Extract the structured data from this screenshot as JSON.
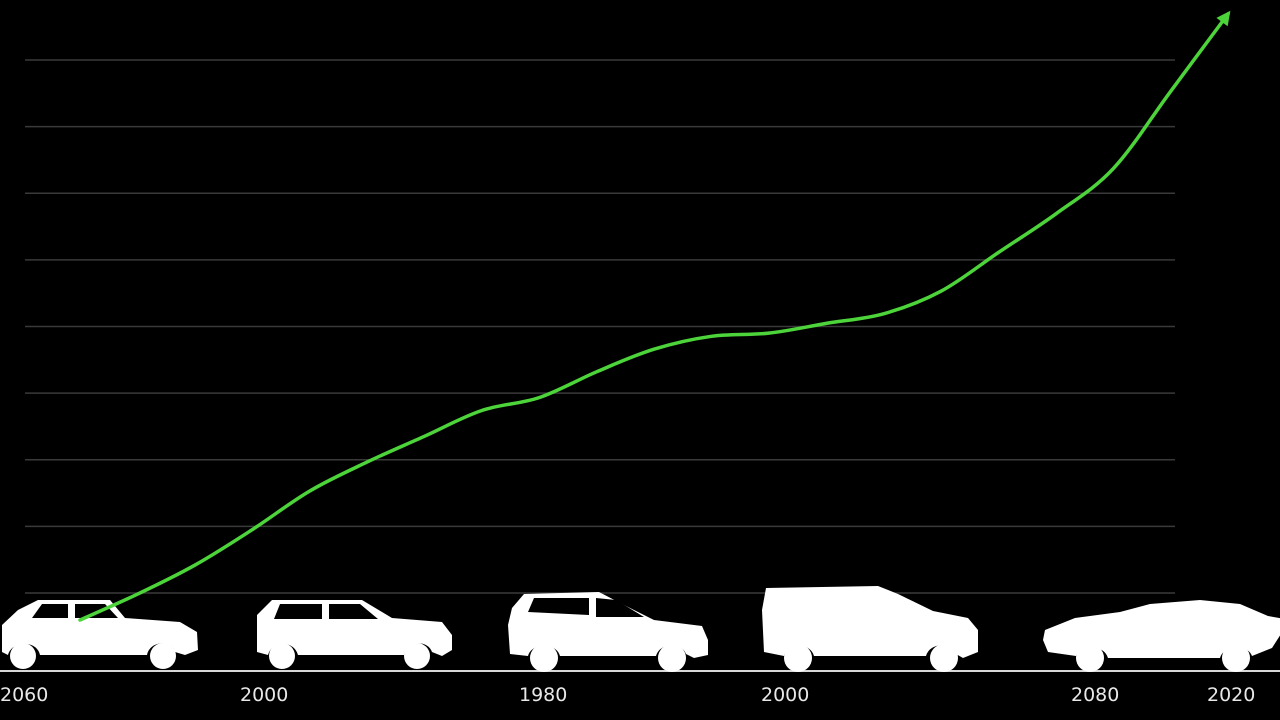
{
  "chart_data": {
    "type": "line",
    "title": "",
    "xlabel": "",
    "ylabel": "",
    "x_tick_labels": [
      "2060",
      "2000",
      "1980",
      "2000",
      "2080",
      "2020"
    ],
    "y_gridlines": 9,
    "grid": true,
    "legend": "none",
    "series": [
      {
        "color": "#4cd43a",
        "arrow_at_end": true,
        "points": [
          [
            0.0,
            0.0
          ],
          [
            0.25,
            0.4
          ],
          [
            0.5,
            0.85
          ],
          [
            0.75,
            1.4
          ],
          [
            1.0,
            2.0
          ],
          [
            1.25,
            2.45
          ],
          [
            1.5,
            2.85
          ],
          [
            1.75,
            3.25
          ],
          [
            2.0,
            3.45
          ],
          [
            2.25,
            3.85
          ],
          [
            2.5,
            4.2
          ],
          [
            2.75,
            4.4
          ],
          [
            3.0,
            4.45
          ],
          [
            3.25,
            4.6
          ],
          [
            3.5,
            4.75
          ],
          [
            3.75,
            5.1
          ],
          [
            4.0,
            5.7
          ],
          [
            4.25,
            6.3
          ],
          [
            4.5,
            7.0
          ],
          [
            4.75,
            8.2
          ],
          [
            5.0,
            9.4
          ]
        ]
      }
    ],
    "silhouettes": [
      {
        "icon": "hatchback-car-icon"
      },
      {
        "icon": "hatchback-car-icon"
      },
      {
        "icon": "suv-car-icon"
      },
      {
        "icon": "boxy-suv-icon"
      },
      {
        "icon": "sedan-car-icon"
      }
    ]
  }
}
